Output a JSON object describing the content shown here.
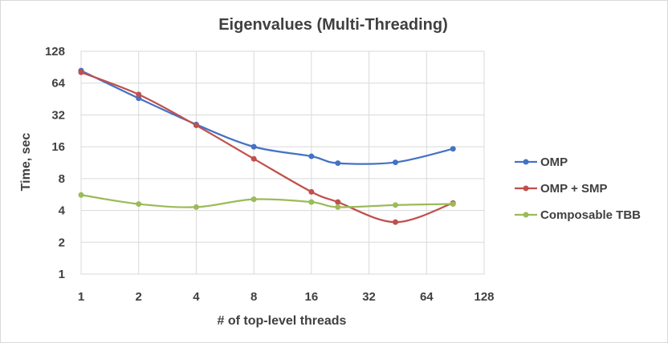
{
  "chart_data": {
    "type": "line",
    "title": "Eigenvalues (Multi-Threading)",
    "xlabel": "# of top-level threads",
    "ylabel": "Time, sec",
    "xscale": "log2",
    "yscale": "log2",
    "xlim": [
      1,
      128
    ],
    "ylim": [
      1,
      128
    ],
    "xticks": [
      "1",
      "2",
      "4",
      "8",
      "16",
      "32",
      "64",
      "128"
    ],
    "yticks": [
      "1",
      "2",
      "4",
      "8",
      "16",
      "32",
      "64",
      "128"
    ],
    "grid": "both",
    "smooth": true,
    "legend": "right",
    "x": [
      1,
      2,
      4,
      8,
      16,
      22,
      44,
      88
    ],
    "series": [
      {
        "name": "OMP",
        "color": "#4472C4",
        "values": [
          84,
          46,
          26,
          16,
          13,
          11.2,
          11.4,
          15.3
        ]
      },
      {
        "name": "OMP + SMP",
        "color": "#C0504D",
        "values": [
          81,
          50,
          25.5,
          12.3,
          6.0,
          4.8,
          3.1,
          4.7
        ]
      },
      {
        "name": "Composable TBB",
        "color": "#9BBB59",
        "values": [
          5.6,
          4.6,
          4.3,
          5.1,
          4.8,
          4.3,
          4.5,
          4.6
        ]
      }
    ]
  }
}
